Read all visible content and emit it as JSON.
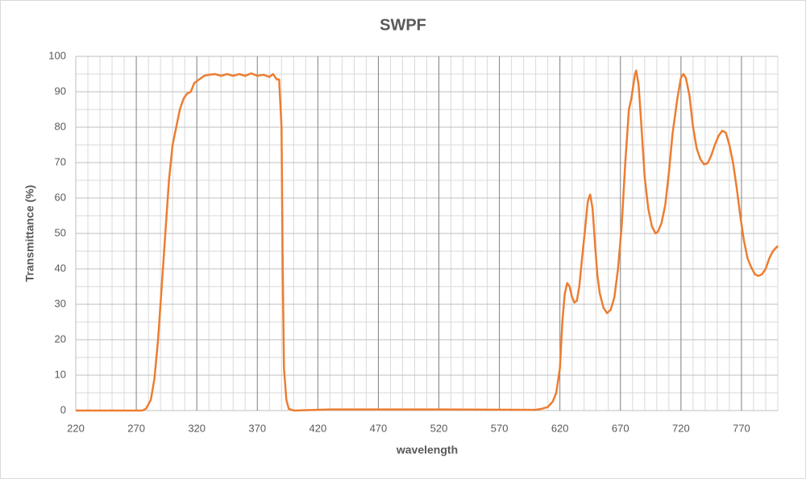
{
  "chart_data": {
    "type": "line",
    "title": "SWPF",
    "x_label": "wavelength",
    "y_label": "Transmittance (%)",
    "xlim": [
      220,
      800
    ],
    "xticks": [
      220,
      270,
      320,
      370,
      420,
      470,
      520,
      570,
      620,
      670,
      720,
      770
    ],
    "ylim": [
      0,
      100
    ],
    "yticks": [
      0,
      10,
      20,
      30,
      40,
      50,
      60,
      70,
      80,
      90,
      100
    ],
    "grid": true,
    "x": [
      220,
      275,
      278,
      282,
      285,
      288,
      291,
      294,
      297,
      300,
      303,
      306,
      309,
      312,
      315,
      318,
      322,
      326,
      330,
      335,
      340,
      345,
      350,
      355,
      360,
      365,
      370,
      375,
      380,
      383,
      386,
      388,
      390,
      391,
      392,
      394,
      396,
      400,
      430,
      470,
      520,
      600,
      605,
      610,
      614,
      617,
      620,
      622,
      624,
      626,
      628,
      630,
      632,
      634,
      636,
      638,
      641,
      643,
      645,
      647,
      649,
      651,
      653,
      656,
      659,
      662,
      665,
      668,
      671,
      674,
      677,
      679,
      682,
      683,
      685,
      687,
      690,
      693,
      696,
      699,
      701,
      704,
      707,
      710,
      713,
      717,
      720,
      722,
      724,
      727,
      730,
      733,
      736,
      739,
      742,
      745,
      748,
      751,
      754,
      757,
      760,
      763,
      766,
      769,
      772,
      775,
      778,
      781,
      784,
      787,
      790,
      793,
      796,
      800
    ],
    "series": [
      {
        "name": "SWPF",
        "color": "#ed7d31",
        "values": [
          0,
          0,
          0.5,
          3,
          9,
          20,
          35,
          50,
          65,
          75,
          80,
          85,
          88,
          89.5,
          90,
          92.5,
          93.5,
          94.5,
          94.8,
          95,
          94.5,
          95,
          94.5,
          95,
          94.5,
          95.2,
          94.5,
          94.8,
          94.2,
          95,
          93.5,
          93.5,
          80,
          40,
          12,
          3,
          0.5,
          0,
          0.3,
          0.3,
          0.3,
          0.2,
          0.5,
          1,
          2.5,
          5,
          12,
          25,
          33,
          36,
          35,
          32,
          30.5,
          31,
          35,
          42,
          52,
          59,
          61,
          57,
          47,
          38,
          33,
          29,
          27.5,
          28.5,
          32,
          40,
          52,
          70,
          85,
          88,
          95,
          96,
          92,
          82,
          66,
          57,
          52,
          50,
          50.5,
          53,
          58,
          67,
          78,
          88,
          94,
          95,
          94,
          89,
          80,
          74,
          71,
          69.5,
          69.8,
          72,
          75,
          77.5,
          79,
          78.5,
          75,
          70,
          63,
          55,
          48,
          43,
          40.5,
          38.5,
          38,
          38.5,
          40,
          43,
          45,
          46.5
        ]
      }
    ]
  }
}
